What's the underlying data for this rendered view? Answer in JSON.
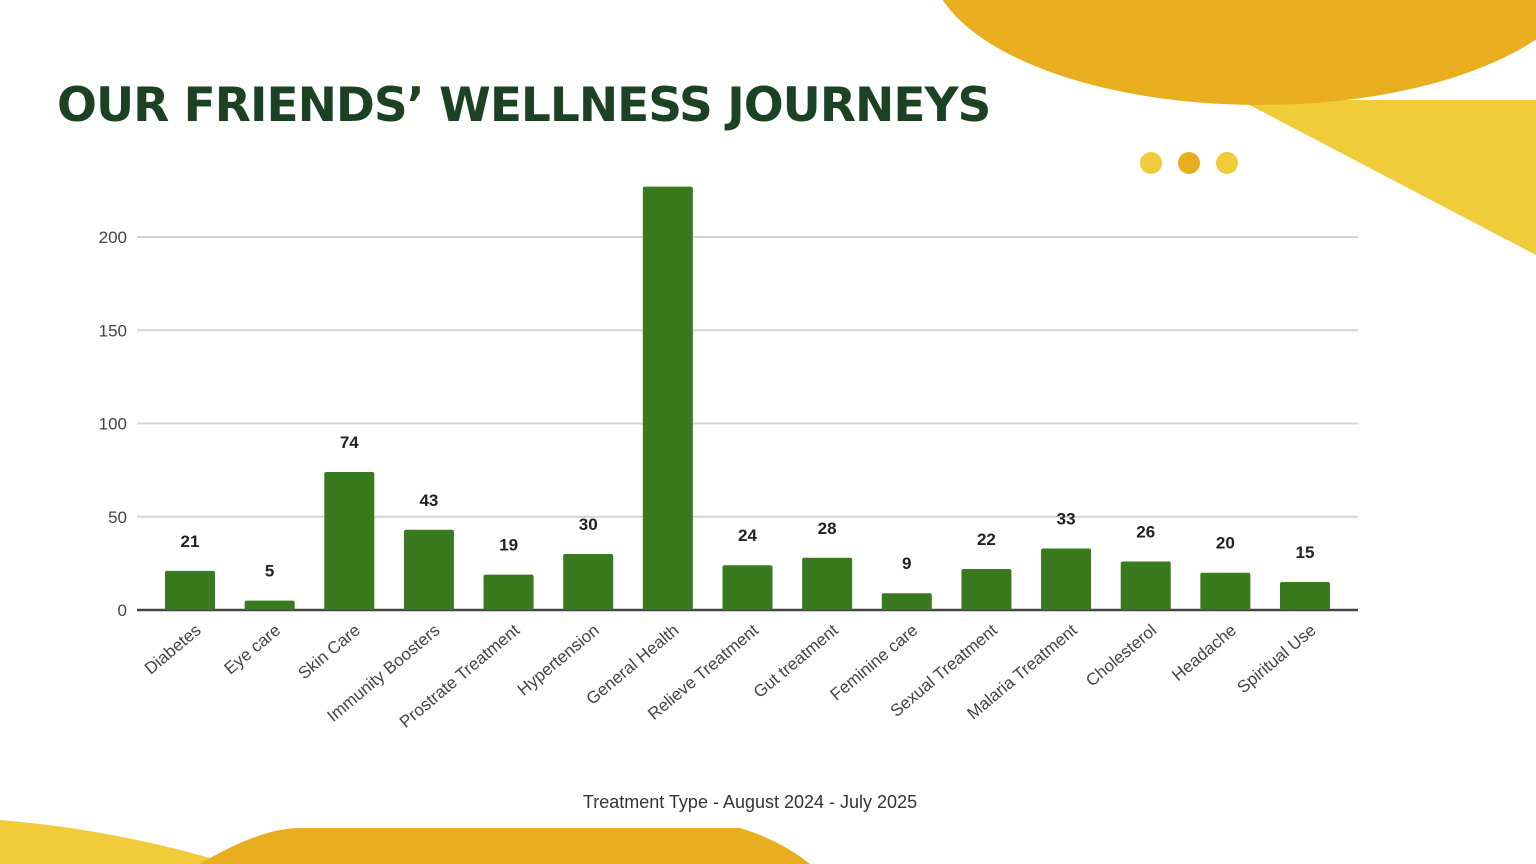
{
  "slide": {
    "title": "OUR FRIENDS’ WELLNESS JOURNEYS",
    "colors": {
      "title": "#1b4223",
      "accent_dark": "#e8ae20",
      "accent_light": "#f0cb3a"
    }
  },
  "chart_data": {
    "type": "bar",
    "title": "",
    "xlabel": "Treatment Type - August 2024 - July 2025",
    "ylabel": "",
    "ylim": [
      0,
      220
    ],
    "yticks": [
      0,
      50,
      100,
      150,
      200
    ],
    "grid": true,
    "bar_color": "#3a7a1e",
    "categories": [
      "Diabetes",
      "Eye care",
      "Skin Care",
      "Immunity Boosters",
      "Prostrate Treatment",
      "Hypertension",
      "General Health",
      "Relieve Treatment",
      "Gut treatment",
      "Feminine care",
      "Sexual Treatment",
      "Malaria Treatment",
      "Cholesterol",
      "Headache",
      "Spiritual Use"
    ],
    "values": [
      21,
      5,
      74,
      43,
      19,
      30,
      227,
      24,
      28,
      9,
      22,
      33,
      26,
      20,
      15
    ],
    "data_labels": [
      "21",
      "5",
      "74",
      "43",
      "19",
      "30",
      null,
      "24",
      "28",
      "9",
      "22",
      "33",
      "26",
      "20",
      "15"
    ]
  }
}
